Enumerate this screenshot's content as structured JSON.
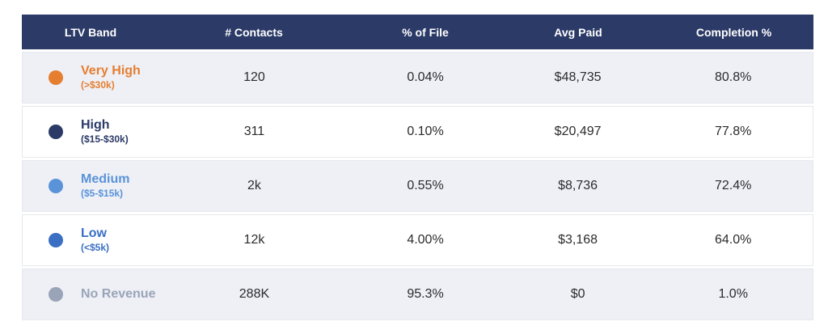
{
  "header": {
    "col1": "LTV Band",
    "col2": "# Contacts",
    "col3": "% of File",
    "col4": "Avg Paid",
    "col5": "Completion %"
  },
  "rows": [
    {
      "name": "Very High",
      "range": ">$30k)",
      "range_full": "(>$30k)",
      "contacts": "120",
      "pct_file": "0.04%",
      "avg_paid": "$48,735",
      "completion": "80.8%",
      "color": "#e67e30"
    },
    {
      "name": "High",
      "range_full": "($15-$30k)",
      "contacts": "311",
      "pct_file": "0.10%",
      "avg_paid": "$20,497",
      "completion": "77.8%",
      "color": "#2b3a67"
    },
    {
      "name": "Medium",
      "range_full": "($5-$15k)",
      "contacts": "2k",
      "pct_file": "0.55%",
      "avg_paid": "$8,736",
      "completion": "72.4%",
      "color": "#5b93d9"
    },
    {
      "name": "Low",
      "range_full": "(<$5k)",
      "contacts": "12k",
      "pct_file": "4.00%",
      "avg_paid": "$3,168",
      "completion": "64.0%",
      "color": "#3a6fc4"
    },
    {
      "name": "No Revenue",
      "range_full": "",
      "contacts": "288K",
      "pct_file": "95.3%",
      "avg_paid": "$0",
      "completion": "1.0%",
      "color": "#9aa4b8"
    }
  ]
}
